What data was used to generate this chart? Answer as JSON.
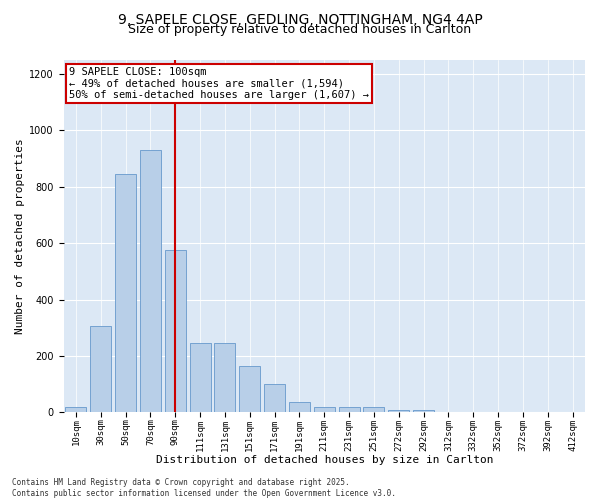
{
  "title_line1": "9, SAPELE CLOSE, GEDLING, NOTTINGHAM, NG4 4AP",
  "title_line2": "Size of property relative to detached houses in Carlton",
  "xlabel": "Distribution of detached houses by size in Carlton",
  "ylabel": "Number of detached properties",
  "categories": [
    "10sqm",
    "30sqm",
    "50sqm",
    "70sqm",
    "90sqm",
    "111sqm",
    "131sqm",
    "151sqm",
    "171sqm",
    "191sqm",
    "211sqm",
    "231sqm",
    "251sqm",
    "272sqm",
    "292sqm",
    "312sqm",
    "332sqm",
    "352sqm",
    "372sqm",
    "392sqm",
    "412sqm"
  ],
  "values": [
    18,
    305,
    845,
    930,
    575,
    245,
    245,
    165,
    100,
    38,
    18,
    18,
    18,
    8,
    10,
    0,
    0,
    0,
    0,
    0,
    0
  ],
  "bar_color": "#b8cfe8",
  "bar_edge_color": "#6699cc",
  "vline_x_index": 4,
  "vline_color": "#cc0000",
  "annotation_line1": "9 SAPELE CLOSE: 100sqm",
  "annotation_line2": "← 49% of detached houses are smaller (1,594)",
  "annotation_line3": "50% of semi-detached houses are larger (1,607) →",
  "box_edge_color": "#cc0000",
  "ylim": [
    0,
    1250
  ],
  "yticks": [
    0,
    200,
    400,
    600,
    800,
    1000,
    1200
  ],
  "background_color": "#dce8f5",
  "footer_text": "Contains HM Land Registry data © Crown copyright and database right 2025.\nContains public sector information licensed under the Open Government Licence v3.0.",
  "title_fontsize": 10,
  "subtitle_fontsize": 9,
  "tick_fontsize": 6.5,
  "xlabel_fontsize": 8,
  "ylabel_fontsize": 8,
  "annot_fontsize": 7.5
}
